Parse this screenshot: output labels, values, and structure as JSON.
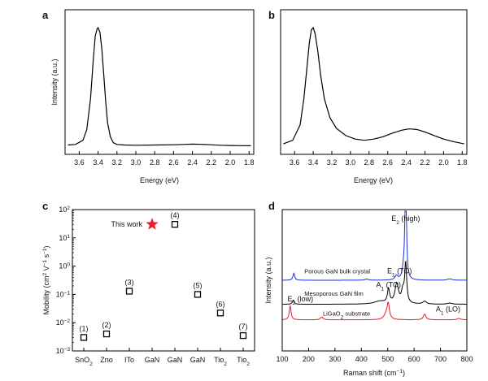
{
  "chart_data": [
    {
      "panel": "a",
      "type": "line",
      "xlabel": "Energy (eV)",
      "ylabel": "Intensity (a.u.)",
      "xlim": [
        3.75,
        1.75
      ],
      "x_reversed": true,
      "xticks": [
        "3.6",
        "3.4",
        "3.2",
        "3.0",
        "2.8",
        "2.6",
        "2.4",
        "2.2",
        "2.0",
        "1.8"
      ],
      "y_ticks_shown": false,
      "series": [
        {
          "color": "#000000",
          "x": [
            3.72,
            3.64,
            3.56,
            3.52,
            3.48,
            3.45,
            3.43,
            3.41,
            3.4,
            3.38,
            3.36,
            3.34,
            3.32,
            3.3,
            3.27,
            3.24,
            3.2,
            3.12,
            3.0,
            2.8,
            2.6,
            2.5,
            2.4,
            2.3,
            2.2,
            2.1,
            2.0,
            1.9,
            1.78
          ],
          "y": [
            0.01,
            0.015,
            0.05,
            0.14,
            0.4,
            0.74,
            0.93,
            0.99,
            1.0,
            0.96,
            0.82,
            0.6,
            0.38,
            0.2,
            0.08,
            0.03,
            0.015,
            0.01,
            0.008,
            0.01,
            0.012,
            0.015,
            0.018,
            0.016,
            0.012,
            0.008,
            0.006,
            0.005,
            0.004
          ]
        }
      ]
    },
    {
      "panel": "b",
      "type": "line",
      "xlabel": "Energy (eV)",
      "xlim": [
        3.75,
        1.75
      ],
      "x_reversed": true,
      "xticks": [
        "3.6",
        "3.4",
        "3.2",
        "3.0",
        "2.8",
        "2.6",
        "2.4",
        "2.2",
        "2.0",
        "1.8"
      ],
      "y_ticks_shown": false,
      "series": [
        {
          "color": "#000000",
          "x": [
            3.72,
            3.62,
            3.54,
            3.5,
            3.46,
            3.44,
            3.42,
            3.4,
            3.38,
            3.35,
            3.32,
            3.28,
            3.22,
            3.15,
            3.05,
            2.95,
            2.85,
            2.75,
            2.65,
            2.55,
            2.45,
            2.38,
            2.34,
            2.28,
            2.2,
            2.1,
            2.0,
            1.9,
            1.78
          ],
          "y": [
            0.02,
            0.05,
            0.18,
            0.4,
            0.72,
            0.88,
            0.98,
            1.0,
            0.95,
            0.8,
            0.6,
            0.4,
            0.24,
            0.15,
            0.09,
            0.06,
            0.05,
            0.06,
            0.08,
            0.11,
            0.135,
            0.145,
            0.145,
            0.14,
            0.12,
            0.09,
            0.06,
            0.04,
            0.02
          ]
        }
      ]
    },
    {
      "panel": "c",
      "type": "scatter",
      "ylabel_parts": [
        "Mobility (cm",
        "2",
        " V",
        "−1",
        " s",
        "−1",
        ")"
      ],
      "y_scale": "log",
      "ylim": [
        0.001,
        100
      ],
      "yticks": [
        {
          "base": "10",
          "exp": "−3"
        },
        {
          "base": "10",
          "exp": "−2"
        },
        {
          "base": "10",
          "exp": "−1"
        },
        {
          "base": "10",
          "exp": "0"
        },
        {
          "base": "10",
          "exp": "1"
        },
        {
          "base": "10",
          "exp": "2"
        }
      ],
      "categories": [
        {
          "main": "SnO",
          "sub": "2"
        },
        {
          "main": "Zno",
          "sub": ""
        },
        {
          "main": "ITo",
          "sub": ""
        },
        {
          "main": "GaN",
          "sub": ""
        },
        {
          "main": "GaN",
          "sub": ""
        },
        {
          "main": "GaN",
          "sub": ""
        },
        {
          "main": "Tio",
          "sub": "2"
        },
        {
          "main": "Tio",
          "sub": "2"
        }
      ],
      "points": [
        {
          "category_index": 0,
          "value": 0.003,
          "label": "(1)"
        },
        {
          "category_index": 1,
          "value": 0.004,
          "label": "(2)"
        },
        {
          "category_index": 2,
          "value": 0.13,
          "label": "(3)"
        },
        {
          "category_index": 4,
          "value": 30,
          "label": "(4)"
        },
        {
          "category_index": 5,
          "value": 0.1,
          "label": "(5)"
        },
        {
          "category_index": 6,
          "value": 0.022,
          "label": "(6)"
        },
        {
          "category_index": 7,
          "value": 0.0035,
          "label": "(7)"
        }
      ],
      "highlight": {
        "category_index": 3,
        "value": 30,
        "label": "This work",
        "color": "#e8202a"
      }
    },
    {
      "panel": "d",
      "type": "line",
      "xlabel_parts": [
        "Raman shift (cm",
        "−1",
        ")"
      ],
      "ylabel": "Intensity (a.u.)",
      "xlim": [
        100,
        800
      ],
      "xticks": [
        "100",
        "200",
        "300",
        "400",
        "500",
        "600",
        "700",
        "800"
      ],
      "y_ticks_shown": false,
      "series": [
        {
          "name": "Porous GaN bulk crystal",
          "color": "#1f2fd6",
          "peaks": [
            [
              144,
              0.05,
              4
            ],
            [
              420,
              0.008,
              8
            ],
            [
              533,
              0.03,
              6
            ],
            [
              560,
              0.06,
              6
            ],
            [
              568,
              1.0,
              2.8
            ],
            [
              735,
              0.01,
              10
            ]
          ],
          "baseline": 0.5
        },
        {
          "name": "Mesoporous GaN film",
          "color": "#000000",
          "peaks": [
            [
              142,
              0.03,
              4
            ],
            [
              470,
              0.02,
              25
            ],
            [
              503,
              0.1,
              5
            ],
            [
              534,
              0.14,
              8
            ],
            [
              557,
              0.08,
              6
            ],
            [
              568,
              0.28,
              4.5
            ],
            [
              640,
              0.02,
              8
            ],
            [
              735,
              0.008,
              10
            ]
          ],
          "baseline": 0.33
        },
        {
          "name": "LiGaO₂ substrate",
          "color": "#e8202a",
          "peaks": [
            [
              130,
              0.1,
              4
            ],
            [
              250,
              0.02,
              6
            ],
            [
              495,
              0.04,
              10
            ],
            [
              502,
              0.1,
              5
            ],
            [
              640,
              0.04,
              6
            ],
            [
              770,
              0.01,
              8
            ]
          ],
          "baseline": 0.22
        }
      ],
      "annotations": [
        {
          "parts": [
            [
              "E",
              "n"
            ],
            [
              "2",
              "s"
            ],
            [
              " (high)",
              "n"
            ]
          ],
          "x": 568
        },
        {
          "parts": [
            [
              "E",
              "n"
            ],
            [
              "1",
              "s"
            ],
            [
              " (TO)",
              "n"
            ]
          ],
          "x": 557
        },
        {
          "parts": [
            [
              "A",
              "n"
            ],
            [
              "1",
              "s"
            ],
            [
              " (TO)",
              "n"
            ]
          ],
          "x": 534
        },
        {
          "parts": [
            [
              "E",
              "n"
            ],
            [
              "2",
              "s"
            ],
            [
              " (low)",
              "n"
            ]
          ],
          "x": 144
        },
        {
          "parts": [
            [
              "A",
              "n"
            ],
            [
              "1",
              "s"
            ],
            [
              " (LO)",
              "n"
            ]
          ],
          "x": 735
        }
      ],
      "series_labels": [
        {
          "parts": [
            [
              "Porous GaN bulk crystal",
              "n"
            ]
          ]
        },
        {
          "parts": [
            [
              "Mesoporous GaN film",
              "n"
            ]
          ]
        },
        {
          "parts": [
            [
              "LiGaO",
              "n"
            ],
            [
              "2",
              "s"
            ],
            [
              " substrate",
              "n"
            ]
          ]
        }
      ]
    }
  ],
  "panel_labels": [
    "a",
    "b",
    "c",
    "d"
  ]
}
